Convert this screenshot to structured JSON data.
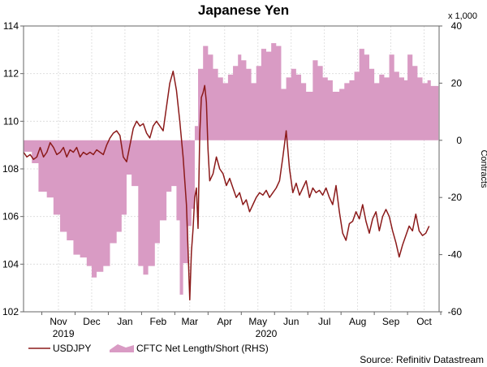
{
  "chart_data": {
    "type": "line",
    "title": "Japanese Yen",
    "source": "Source: Refinitiv Datastream",
    "left_axis": {
      "min": 102,
      "max": 114,
      "ticks": [
        "102",
        "104",
        "106",
        "108",
        "110",
        "112",
        "114"
      ]
    },
    "right_axis": {
      "min": -60,
      "max": 40,
      "multiplier_label": "x 1,000",
      "label": "Contracts",
      "ticks": [
        "-60",
        "-40",
        "-20",
        "0",
        "20",
        "40"
      ]
    },
    "x_axis": {
      "start": 0,
      "end": 12.5,
      "months": [
        {
          "label": "Nov",
          "pos": 1.05
        },
        {
          "label": "Dec",
          "pos": 2.05
        },
        {
          "label": "Jan",
          "pos": 3.05
        },
        {
          "label": "Feb",
          "pos": 4.05
        },
        {
          "label": "Mar",
          "pos": 5.0
        },
        {
          "label": "Apr",
          "pos": 6.05
        },
        {
          "label": "May",
          "pos": 7.05
        },
        {
          "label": "Jun",
          "pos": 8.05
        },
        {
          "label": "Jul",
          "pos": 9.05
        },
        {
          "label": "Aug",
          "pos": 10.05
        },
        {
          "label": "Sep",
          "pos": 11.05
        },
        {
          "label": "Oct",
          "pos": 12.05
        }
      ],
      "years": [
        {
          "label": "2019",
          "pos": 1.2
        },
        {
          "label": "2020",
          "pos": 7.3
        }
      ]
    },
    "series": [
      {
        "name": "USDJPY",
        "kind": "line",
        "axis": "left",
        "color": "#8b1a1a",
        "points": [
          [
            0.0,
            108.7
          ],
          [
            0.1,
            108.5
          ],
          [
            0.2,
            108.6
          ],
          [
            0.3,
            108.4
          ],
          [
            0.4,
            108.5
          ],
          [
            0.5,
            108.9
          ],
          [
            0.6,
            108.5
          ],
          [
            0.7,
            108.7
          ],
          [
            0.8,
            109.1
          ],
          [
            0.9,
            108.9
          ],
          [
            1.0,
            108.6
          ],
          [
            1.1,
            108.7
          ],
          [
            1.2,
            108.9
          ],
          [
            1.3,
            108.5
          ],
          [
            1.4,
            108.8
          ],
          [
            1.5,
            108.7
          ],
          [
            1.6,
            108.9
          ],
          [
            1.7,
            108.5
          ],
          [
            1.8,
            108.7
          ],
          [
            1.9,
            108.6
          ],
          [
            2.0,
            108.7
          ],
          [
            2.1,
            108.6
          ],
          [
            2.2,
            108.8
          ],
          [
            2.3,
            108.7
          ],
          [
            2.4,
            108.6
          ],
          [
            2.5,
            109.0
          ],
          [
            2.6,
            109.3
          ],
          [
            2.7,
            109.5
          ],
          [
            2.8,
            109.6
          ],
          [
            2.9,
            109.4
          ],
          [
            3.0,
            108.5
          ],
          [
            3.1,
            108.3
          ],
          [
            3.2,
            109.0
          ],
          [
            3.3,
            109.7
          ],
          [
            3.4,
            110.0
          ],
          [
            3.5,
            109.8
          ],
          [
            3.6,
            109.9
          ],
          [
            3.7,
            109.5
          ],
          [
            3.8,
            109.3
          ],
          [
            3.9,
            109.8
          ],
          [
            4.0,
            110.0
          ],
          [
            4.1,
            109.8
          ],
          [
            4.2,
            109.6
          ],
          [
            4.3,
            110.6
          ],
          [
            4.4,
            111.6
          ],
          [
            4.5,
            112.1
          ],
          [
            4.6,
            111.3
          ],
          [
            4.7,
            110.0
          ],
          [
            4.8,
            108.5
          ],
          [
            4.9,
            106.5
          ],
          [
            4.95,
            104.5
          ],
          [
            5.0,
            102.5
          ],
          [
            5.05,
            104.5
          ],
          [
            5.1,
            105.5
          ],
          [
            5.15,
            106.8
          ],
          [
            5.2,
            107.2
          ],
          [
            5.25,
            105.5
          ],
          [
            5.3,
            109.5
          ],
          [
            5.35,
            111.0
          ],
          [
            5.4,
            111.2
          ],
          [
            5.45,
            111.5
          ],
          [
            5.5,
            110.8
          ],
          [
            5.55,
            108.8
          ],
          [
            5.6,
            107.5
          ],
          [
            5.7,
            107.8
          ],
          [
            5.8,
            108.5
          ],
          [
            5.9,
            108.0
          ],
          [
            6.0,
            107.8
          ],
          [
            6.1,
            107.3
          ],
          [
            6.2,
            107.6
          ],
          [
            6.3,
            107.2
          ],
          [
            6.4,
            106.8
          ],
          [
            6.5,
            107.0
          ],
          [
            6.6,
            106.5
          ],
          [
            6.7,
            106.7
          ],
          [
            6.8,
            106.2
          ],
          [
            6.9,
            106.5
          ],
          [
            7.0,
            106.8
          ],
          [
            7.1,
            107.0
          ],
          [
            7.2,
            106.9
          ],
          [
            7.3,
            107.1
          ],
          [
            7.4,
            106.8
          ],
          [
            7.5,
            107.0
          ],
          [
            7.6,
            107.2
          ],
          [
            7.7,
            107.5
          ],
          [
            7.8,
            108.5
          ],
          [
            7.9,
            109.6
          ],
          [
            8.0,
            108.0
          ],
          [
            8.1,
            107.0
          ],
          [
            8.2,
            107.4
          ],
          [
            8.3,
            106.9
          ],
          [
            8.4,
            107.2
          ],
          [
            8.5,
            107.5
          ],
          [
            8.6,
            106.8
          ],
          [
            8.7,
            107.2
          ],
          [
            8.8,
            107.0
          ],
          [
            8.9,
            107.1
          ],
          [
            9.0,
            106.9
          ],
          [
            9.1,
            107.2
          ],
          [
            9.2,
            106.8
          ],
          [
            9.3,
            106.5
          ],
          [
            9.4,
            107.3
          ],
          [
            9.5,
            106.2
          ],
          [
            9.6,
            105.3
          ],
          [
            9.7,
            105.0
          ],
          [
            9.8,
            105.7
          ],
          [
            9.9,
            105.8
          ],
          [
            10.0,
            106.2
          ],
          [
            10.1,
            105.9
          ],
          [
            10.2,
            106.5
          ],
          [
            10.3,
            105.8
          ],
          [
            10.4,
            105.3
          ],
          [
            10.5,
            105.9
          ],
          [
            10.6,
            106.2
          ],
          [
            10.7,
            105.4
          ],
          [
            10.8,
            106.0
          ],
          [
            10.9,
            106.3
          ],
          [
            11.0,
            106.0
          ],
          [
            11.1,
            105.4
          ],
          [
            11.2,
            104.9
          ],
          [
            11.3,
            104.3
          ],
          [
            11.4,
            104.8
          ],
          [
            11.5,
            105.2
          ],
          [
            11.6,
            105.6
          ],
          [
            11.7,
            105.4
          ],
          [
            11.8,
            106.1
          ],
          [
            11.9,
            105.4
          ],
          [
            12.0,
            105.2
          ],
          [
            12.1,
            105.3
          ],
          [
            12.2,
            105.6
          ]
        ]
      },
      {
        "name": "CFTC Net Length/Short (RHS)",
        "kind": "step-area",
        "axis": "right",
        "color": "#d99bc4",
        "start_value": 0,
        "steps": [
          [
            0.0,
            -4
          ],
          [
            0.25,
            -8
          ],
          [
            0.45,
            -18
          ],
          [
            0.7,
            -20
          ],
          [
            0.9,
            -26
          ],
          [
            1.1,
            -32
          ],
          [
            1.3,
            -35
          ],
          [
            1.5,
            -40
          ],
          [
            1.7,
            -41
          ],
          [
            1.9,
            -44
          ],
          [
            2.05,
            -48
          ],
          [
            2.2,
            -46
          ],
          [
            2.4,
            -44
          ],
          [
            2.6,
            -36
          ],
          [
            2.8,
            -32
          ],
          [
            2.95,
            -26
          ],
          [
            3.1,
            -12
          ],
          [
            3.25,
            -16
          ],
          [
            3.45,
            -44
          ],
          [
            3.6,
            -47
          ],
          [
            3.75,
            -44
          ],
          [
            3.95,
            -36
          ],
          [
            4.1,
            -28
          ],
          [
            4.3,
            -18
          ],
          [
            4.45,
            -16
          ],
          [
            4.6,
            -28
          ],
          [
            4.7,
            -54
          ],
          [
            4.8,
            -43
          ],
          [
            4.95,
            -30
          ],
          [
            5.05,
            -24
          ],
          [
            5.15,
            5
          ],
          [
            5.25,
            25
          ],
          [
            5.4,
            33
          ],
          [
            5.55,
            30
          ],
          [
            5.7,
            25
          ],
          [
            5.85,
            22
          ],
          [
            6.0,
            20
          ],
          [
            6.15,
            23
          ],
          [
            6.3,
            26
          ],
          [
            6.45,
            30
          ],
          [
            6.55,
            28
          ],
          [
            6.7,
            25
          ],
          [
            6.85,
            20
          ],
          [
            7.0,
            26
          ],
          [
            7.15,
            32
          ],
          [
            7.3,
            31
          ],
          [
            7.45,
            34
          ],
          [
            7.6,
            33
          ],
          [
            7.75,
            18
          ],
          [
            7.9,
            22
          ],
          [
            8.05,
            25
          ],
          [
            8.2,
            23
          ],
          [
            8.35,
            20
          ],
          [
            8.5,
            17
          ],
          [
            8.7,
            28
          ],
          [
            8.85,
            26
          ],
          [
            9.0,
            22
          ],
          [
            9.15,
            21
          ],
          [
            9.3,
            17
          ],
          [
            9.5,
            18
          ],
          [
            9.65,
            20
          ],
          [
            9.8,
            21
          ],
          [
            9.95,
            24
          ],
          [
            10.1,
            32
          ],
          [
            10.25,
            30
          ],
          [
            10.4,
            25
          ],
          [
            10.55,
            20
          ],
          [
            10.7,
            23
          ],
          [
            10.85,
            22
          ],
          [
            11.0,
            30
          ],
          [
            11.15,
            24
          ],
          [
            11.3,
            22
          ],
          [
            11.45,
            21
          ],
          [
            11.55,
            30
          ],
          [
            11.7,
            26
          ],
          [
            11.85,
            22
          ],
          [
            12.0,
            20
          ],
          [
            12.15,
            21
          ],
          [
            12.25,
            19
          ]
        ]
      }
    ],
    "legend": [
      {
        "label": "USDJPY",
        "swatch": "line"
      },
      {
        "label": "CFTC Net Length/Short (RHS)",
        "swatch": "area"
      }
    ]
  }
}
